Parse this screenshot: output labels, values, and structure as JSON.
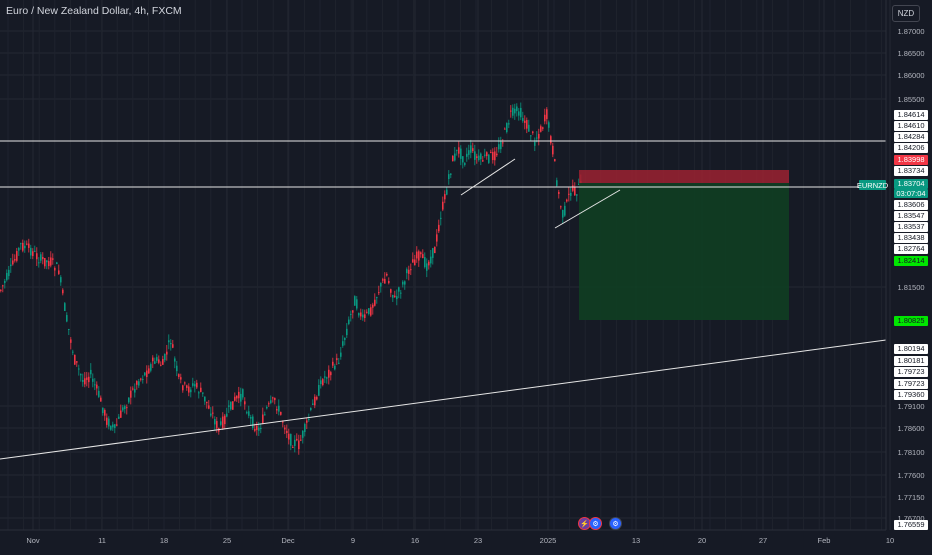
{
  "header": {
    "title": "Euro / New Zealand Dollar, 4h, FXCM",
    "currency_button": "NZD"
  },
  "axis": {
    "price_ticks": [
      {
        "label": "1.87000",
        "y": 31
      },
      {
        "label": "1.86500",
        "y": 53
      },
      {
        "label": "1.86000",
        "y": 75
      },
      {
        "label": "1.85500",
        "y": 99
      },
      {
        "label": "1.81500",
        "y": 287
      },
      {
        "label": "1.79100",
        "y": 406
      },
      {
        "label": "1.78600",
        "y": 428
      },
      {
        "label": "1.78100",
        "y": 452
      },
      {
        "label": "1.77600",
        "y": 475
      },
      {
        "label": "1.77150",
        "y": 497
      },
      {
        "label": "1.76700",
        "y": 518
      }
    ],
    "time_ticks": [
      {
        "label": "Nov",
        "x": 33
      },
      {
        "label": "11",
        "x": 102
      },
      {
        "label": "18",
        "x": 164
      },
      {
        "label": "25",
        "x": 227
      },
      {
        "label": "Dec",
        "x": 288
      },
      {
        "label": "9",
        "x": 353
      },
      {
        "label": "16",
        "x": 415
      },
      {
        "label": "23",
        "x": 478
      },
      {
        "label": "2025",
        "x": 548
      },
      {
        "label": "13",
        "x": 636
      },
      {
        "label": "20",
        "x": 702
      },
      {
        "label": "27",
        "x": 763
      },
      {
        "label": "Feb",
        "x": 824
      },
      {
        "label": "10",
        "x": 890
      }
    ]
  },
  "price_labels": {
    "a": "1.84614",
    "b": "1.84610",
    "c": "1.84284",
    "d": "1.84206",
    "stop": "1.83998",
    "e": "1.83734",
    "last": "1.83704",
    "countdown": "03:07:04",
    "f": "1.83606",
    "g": "1.83547",
    "h": "1.83537",
    "i": "1.83438",
    "j": "1.82764",
    "k": "1.82414",
    "target": "1.80825",
    "l": "1.80194",
    "m": "1.80181",
    "n": "1.79723",
    "o": "1.79723",
    "p": "1.79360",
    "q": "1.76559"
  },
  "symbol_tag": "EURNZD",
  "colors": {
    "background": "#161a25",
    "bull": "#089981",
    "bear": "#f23645",
    "stop_zone": "#9b2231",
    "target_zone": "#0f3e22"
  },
  "event_icons": [
    "flash-icon",
    "settings-icon",
    "settings-icon"
  ]
}
